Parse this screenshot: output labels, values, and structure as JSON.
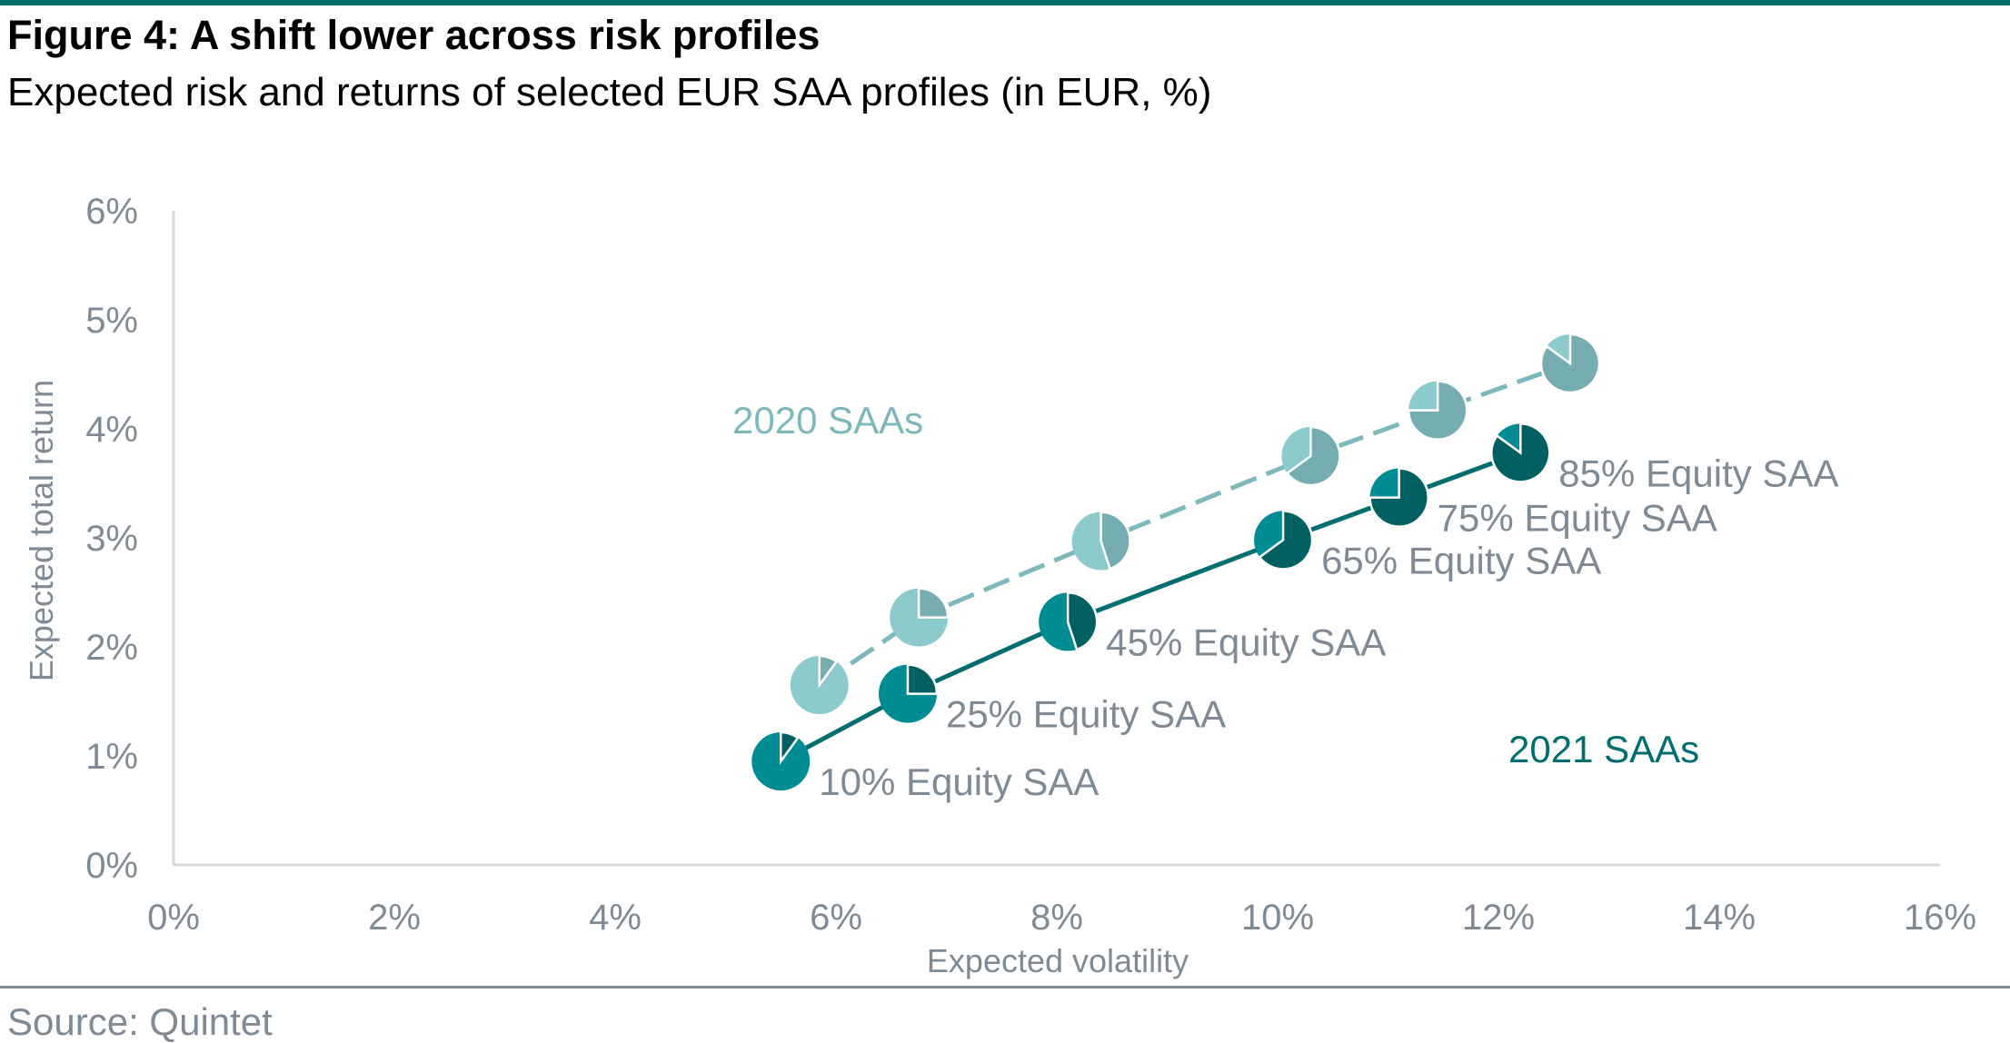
{
  "figure": {
    "title": "Figure 4: A shift lower across risk profiles",
    "subtitle": "Expected risk and returns of selected EUR SAA profiles (in EUR, %)",
    "source": "Source: Quintet"
  },
  "colors": {
    "rule": "#006d6f",
    "axis": "#d9d9d9",
    "tick_text": "#7f8a94",
    "series_2020_light": "#8ccacb",
    "series_2020_dark": "#76adb0",
    "series_2020_line": "#7fb8ba",
    "series_2021_light": "#008c93",
    "series_2021_dark": "#005f61",
    "series_2021_line": "#006d6f"
  },
  "chart_data": {
    "type": "scatter",
    "xlabel": "Expected volatility",
    "ylabel": "Expected total return",
    "xlim": [
      0,
      16
    ],
    "ylim": [
      0,
      6
    ],
    "xticks": [
      "0%",
      "2%",
      "4%",
      "6%",
      "8%",
      "10%",
      "12%",
      "14%",
      "16%"
    ],
    "yticks": [
      "0%",
      "1%",
      "2%",
      "3%",
      "4%",
      "5%",
      "6%"
    ],
    "grid": false,
    "marker": "pie showing equity share",
    "series": [
      {
        "name": "2020 SAAs",
        "points": [
          {
            "x": 5.85,
            "y": 1.65,
            "equity": 10
          },
          {
            "x": 6.75,
            "y": 2.27,
            "equity": 25
          },
          {
            "x": 8.4,
            "y": 2.97,
            "equity": 45
          },
          {
            "x": 10.3,
            "y": 3.75,
            "equity": 65
          },
          {
            "x": 11.45,
            "y": 4.17,
            "equity": 75
          },
          {
            "x": 12.65,
            "y": 4.6,
            "equity": 85
          }
        ]
      },
      {
        "name": "2021 SAAs",
        "points": [
          {
            "x": 5.5,
            "y": 0.95,
            "equity": 10,
            "label": "10% Equity SAA"
          },
          {
            "x": 6.65,
            "y": 1.57,
            "equity": 25,
            "label": "25% Equity SAA"
          },
          {
            "x": 8.1,
            "y": 2.23,
            "equity": 45,
            "label": "45% Equity SAA"
          },
          {
            "x": 10.05,
            "y": 2.98,
            "equity": 65,
            "label": "65% Equity SAA"
          },
          {
            "x": 11.1,
            "y": 3.37,
            "equity": 75,
            "label": "75% Equity SAA"
          },
          {
            "x": 12.2,
            "y": 3.78,
            "equity": 85,
            "label": "85% Equity SAA"
          }
        ]
      }
    ],
    "annotations": [
      "2020 SAAs",
      "2021 SAAs"
    ]
  }
}
